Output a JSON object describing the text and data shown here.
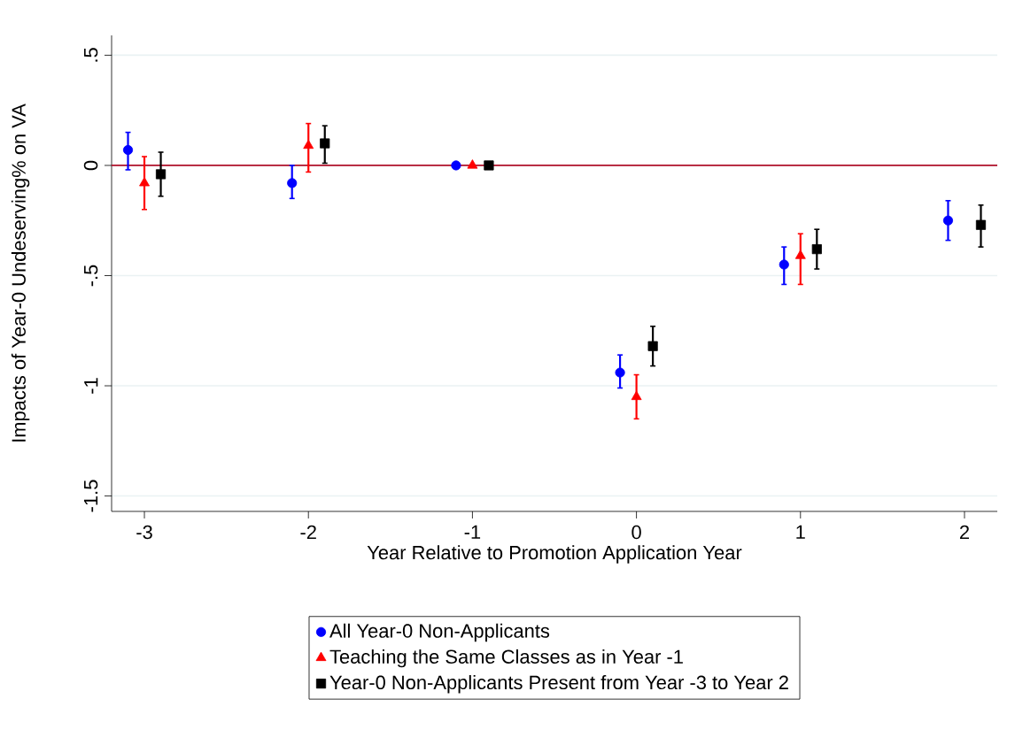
{
  "chart_data": {
    "type": "scatter",
    "xlabel": "Year Relative to Promotion Application Year",
    "ylabel": "Impacts of Year-0 Undeserving% on VA",
    "xlim": [
      -3.2,
      2.2
    ],
    "ylim": [
      -1.57,
      0.59
    ],
    "xticks": [
      -3,
      -2,
      -1,
      0,
      1,
      2
    ],
    "yticks": [
      {
        "value": 0.5,
        "label": ".5"
      },
      0,
      {
        "value": -0.5,
        "label": "-.5"
      },
      -1,
      -1.5
    ],
    "grid": "y",
    "legend": "bottom",
    "ref_lines": [
      {
        "axis": "y",
        "value": 0,
        "color": "#b0102a"
      }
    ],
    "series": [
      {
        "name": "All Year-0 Non-Applicants",
        "color": "#0000ff",
        "marker": "circle",
        "x": [
          -3.1,
          -2.1,
          -1.1,
          -0.1,
          0.9,
          1.9
        ],
        "values": [
          0.07,
          -0.08,
          0,
          -0.94,
          -0.45,
          -0.25
        ],
        "errors": [
          [
            -0.02,
            0.15
          ],
          [
            -0.15,
            0.0
          ],
          null,
          [
            -1.01,
            -0.86
          ],
          [
            -0.54,
            -0.37
          ],
          [
            -0.34,
            -0.16
          ]
        ]
      },
      {
        "name": "Teaching the Same Classes as in Year -1",
        "color": "#ff0000",
        "marker": "triangle",
        "x": [
          -3,
          -2,
          -1,
          0,
          1
        ],
        "values": [
          -0.08,
          0.09,
          0,
          -1.05,
          -0.41
        ],
        "errors": [
          [
            -0.2,
            0.04
          ],
          [
            -0.03,
            0.19
          ],
          null,
          [
            -1.15,
            -0.95
          ],
          [
            -0.54,
            -0.31
          ]
        ]
      },
      {
        "name": "Year-0 Non-Applicants Present from Year -3 to Year 2",
        "color": "#000000",
        "marker": "square",
        "x": [
          -2.9,
          -1.9,
          -0.9,
          0.1,
          1.1,
          2.1
        ],
        "values": [
          -0.04,
          0.1,
          0,
          -0.82,
          -0.38,
          -0.27
        ],
        "errors": [
          [
            -0.14,
            0.06
          ],
          [
            0.01,
            0.18
          ],
          null,
          [
            -0.91,
            -0.73
          ],
          [
            -0.47,
            -0.29
          ],
          [
            -0.37,
            -0.18
          ]
        ]
      }
    ]
  }
}
